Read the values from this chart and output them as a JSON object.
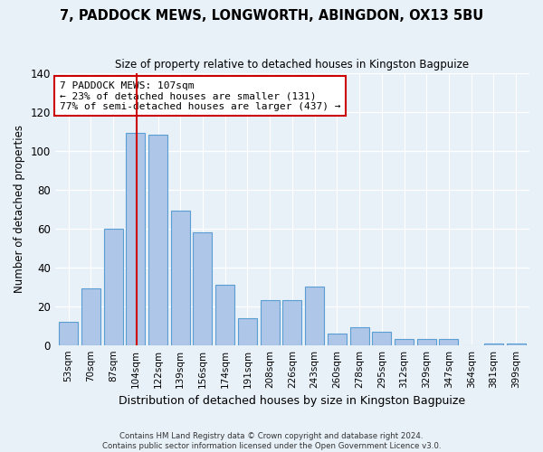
{
  "title": "7, PADDOCK MEWS, LONGWORTH, ABINGDON, OX13 5BU",
  "subtitle": "Size of property relative to detached houses in Kingston Bagpuize",
  "xlabel": "Distribution of detached houses by size in Kingston Bagpuize",
  "ylabel": "Number of detached properties",
  "footer_line1": "Contains HM Land Registry data © Crown copyright and database right 2024.",
  "footer_line2": "Contains public sector information licensed under the Open Government Licence v3.0.",
  "bar_labels": [
    "53sqm",
    "70sqm",
    "87sqm",
    "104sqm",
    "122sqm",
    "139sqm",
    "156sqm",
    "174sqm",
    "191sqm",
    "208sqm",
    "226sqm",
    "243sqm",
    "260sqm",
    "278sqm",
    "295sqm",
    "312sqm",
    "329sqm",
    "347sqm",
    "364sqm",
    "381sqm",
    "399sqm"
  ],
  "bar_values": [
    12,
    29,
    60,
    109,
    108,
    69,
    58,
    31,
    14,
    23,
    23,
    30,
    6,
    9,
    7,
    3,
    3,
    3,
    0,
    1,
    1
  ],
  "bar_color": "#aec6e8",
  "bar_edge_color": "#5a9fd4",
  "bg_color": "#e8f0f8",
  "grid_color": "#ffffff",
  "property_label": "7 PADDOCK MEWS: 107sqm",
  "pct_smaller": 23,
  "n_smaller": 131,
  "pct_larger_semi": 77,
  "n_larger_semi": 437,
  "vline_color": "#cc0000",
  "annotation_box_color": "#cc0000",
  "ylim": [
    0,
    140
  ],
  "yticks": [
    0,
    20,
    40,
    60,
    80,
    100,
    120,
    140
  ],
  "vline_x_index": 3.05
}
